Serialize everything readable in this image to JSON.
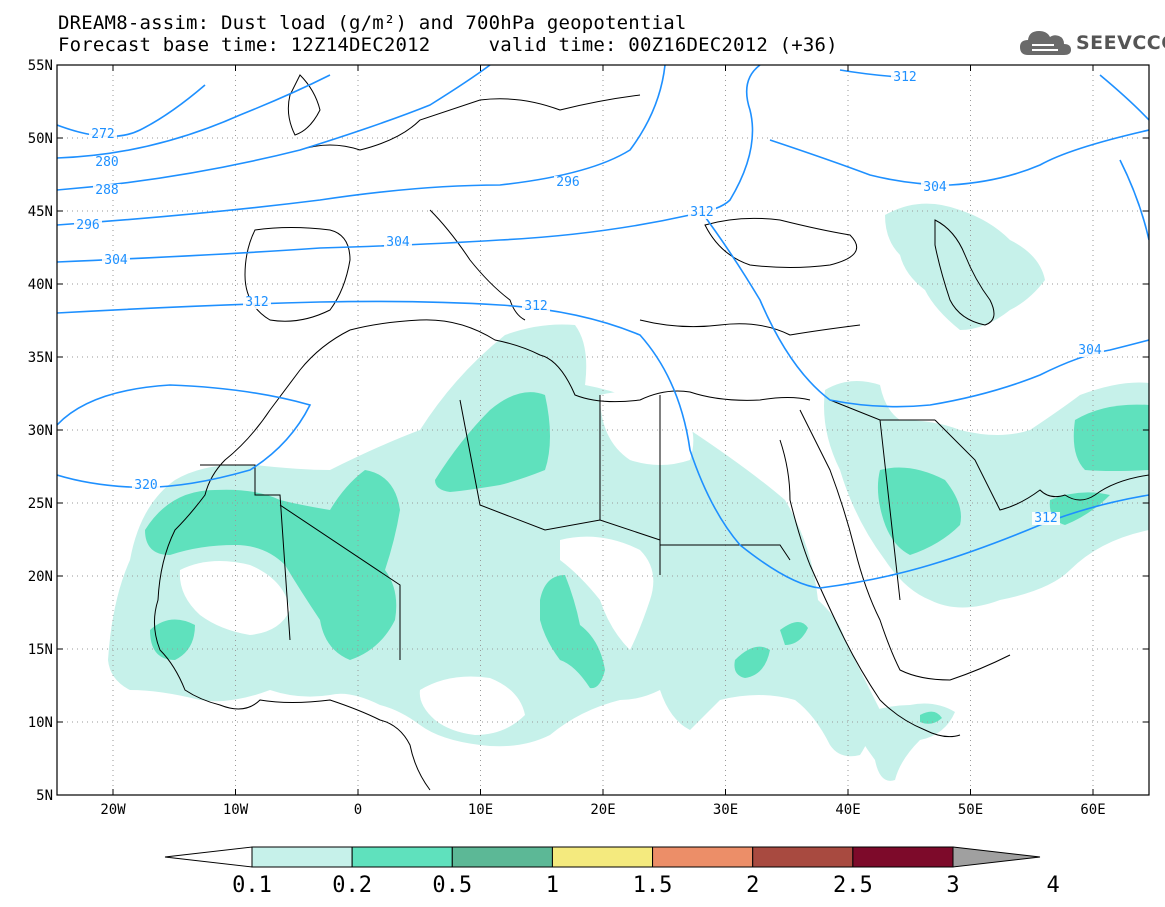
{
  "header": {
    "line1": "DREAM8-assim: Dust load (g/m²) and 700hPa geopotential",
    "line2": "Forecast base time: 12Z14DEC2012     valid time: 00Z16DEC2012 (+36)"
  },
  "logo": {
    "text": "SEEVCCC",
    "icon": "cloud-icon"
  },
  "map": {
    "lon_ticks": [
      "20W",
      "10W",
      "0",
      "10E",
      "20E",
      "30E",
      "40E",
      "50E",
      "60E"
    ],
    "lat_ticks": [
      "55N",
      "50N",
      "45N",
      "40N",
      "35N",
      "30N",
      "25N",
      "20N",
      "15N",
      "10N",
      "5N"
    ],
    "contour_labels": [
      "272",
      "280",
      "288",
      "296",
      "304",
      "312",
      "320",
      "296",
      "304",
      "312",
      "312",
      "304",
      "312",
      "304",
      "312"
    ],
    "colors": {
      "contour": "#1e90ff",
      "dust_light": "#c6f1ea",
      "dust_mid": "#5fe1bd"
    }
  },
  "colorbar": {
    "labels": [
      "0.1",
      "0.2",
      "0.5",
      "1",
      "1.5",
      "2",
      "2.5",
      "3",
      "4"
    ],
    "colors": [
      "#c6f1ea",
      "#5fe1bd",
      "#5cb896",
      "#f4ea7e",
      "#ec8e68",
      "#a84a40",
      "#7d0a2a",
      "#896aa0",
      "#a0a0a0"
    ]
  }
}
